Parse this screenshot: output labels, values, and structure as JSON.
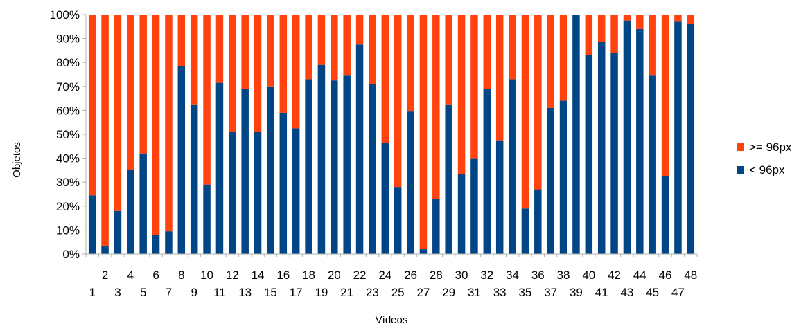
{
  "chart_data": {
    "type": "bar",
    "stacked": "percent",
    "xlabel": "Vídeos",
    "ylabel": "Objetos",
    "ylim": [
      0,
      100
    ],
    "yticks": [
      "0%",
      "10%",
      "20%",
      "30%",
      "40%",
      "50%",
      "60%",
      "70%",
      "80%",
      "90%",
      "100%"
    ],
    "categories": [
      "1",
      "2",
      "3",
      "4",
      "5",
      "6",
      "7",
      "8",
      "9",
      "10",
      "11",
      "12",
      "13",
      "14",
      "15",
      "16",
      "17",
      "18",
      "19",
      "20",
      "21",
      "22",
      "23",
      "24",
      "25",
      "26",
      "27",
      "28",
      "29",
      "30",
      "31",
      "32",
      "33",
      "34",
      "35",
      "36",
      "37",
      "38",
      "39",
      "40",
      "41",
      "42",
      "43",
      "44",
      "45",
      "46",
      "47",
      "48"
    ],
    "series": [
      {
        "name": "< 96px",
        "color": "#004586",
        "values": [
          24.5,
          3.5,
          18,
          35,
          42,
          8,
          9.5,
          78.5,
          62.5,
          29,
          71.5,
          51,
          69,
          51,
          70,
          59,
          52.5,
          73,
          79,
          72.5,
          74.5,
          87.5,
          71,
          46.5,
          28,
          59.5,
          2,
          23,
          62.5,
          33.5,
          40,
          69,
          47.5,
          73,
          19,
          27,
          61,
          64,
          100,
          83,
          88.5,
          84,
          97.5,
          94,
          74.5,
          32.5,
          97,
          96
        ]
      },
      {
        "name": ">= 96px",
        "color": "#ff420e",
        "values": [
          75.5,
          96.5,
          82,
          65,
          58,
          92,
          90.5,
          21.5,
          37.5,
          71,
          28.5,
          49,
          31,
          49,
          30,
          41,
          47.5,
          27,
          21,
          27.5,
          25.5,
          12.5,
          29,
          53.5,
          72,
          40.5,
          98,
          77,
          37.5,
          66.5,
          60,
          31,
          52.5,
          27,
          81,
          73,
          39,
          36,
          0,
          17,
          11.5,
          16,
          2.5,
          6,
          25.5,
          67.5,
          3,
          4
        ]
      }
    ],
    "legend_position": "right",
    "grid": false
  }
}
